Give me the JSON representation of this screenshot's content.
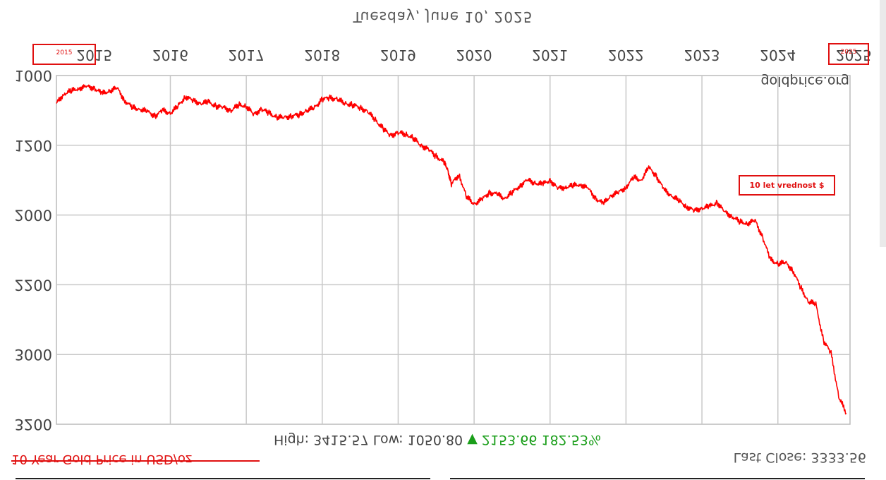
{
  "chart_data": {
    "type": "line",
    "orientation": "mirrored-vertically",
    "title": "Tuesday, June 10, 2025",
    "source": "goldprice.org",
    "caption": "10 Year Gold Price in USD/oz",
    "x_tick_labels": [
      "2015",
      "2016",
      "2017",
      "2018",
      "2019",
      "2020",
      "2021",
      "2022",
      "2023",
      "2024",
      "2025"
    ],
    "y_tick_labels": [
      "1000",
      "1500",
      "2000",
      "2500",
      "3000",
      "3500"
    ],
    "y_axis_printed_labels": [
      "1000",
      "1200",
      "2000",
      "2200",
      "3000",
      "3200"
    ],
    "ylim": [
      1000,
      3500
    ],
    "xlim": [
      2015.0,
      2025.45
    ],
    "grid": true,
    "line_color": "#ff0000",
    "series": [
      {
        "x": [
          2015.0,
          2015.1,
          2015.2,
          2015.3,
          2015.4,
          2015.5,
          2015.6,
          2015.7,
          2015.8,
          2015.9,
          2016.0,
          2016.1,
          2016.2,
          2016.3,
          2016.4,
          2016.5,
          2016.6,
          2016.7,
          2016.8,
          2016.9,
          2017.0,
          2017.1,
          2017.2,
          2017.3,
          2017.4,
          2017.5,
          2017.6,
          2017.7,
          2017.8,
          2017.9,
          2018.0,
          2018.1,
          2018.2,
          2018.3,
          2018.4,
          2018.5,
          2018.6,
          2018.7,
          2018.8,
          2018.9,
          2019.0,
          2019.1,
          2019.2,
          2019.3,
          2019.4,
          2019.5,
          2019.6,
          2019.7,
          2019.8,
          2019.9,
          2020.0,
          2020.1,
          2020.15,
          2020.2,
          2020.3,
          2020.4,
          2020.5,
          2020.6,
          2020.7,
          2020.8,
          2020.9,
          2021.0,
          2021.1,
          2021.2,
          2021.3,
          2021.4,
          2021.5,
          2021.6,
          2021.7,
          2021.8,
          2021.9,
          2022.0,
          2022.1,
          2022.2,
          2022.3,
          2022.4,
          2022.5,
          2022.6,
          2022.7,
          2022.8,
          2022.9,
          2023.0,
          2023.1,
          2023.2,
          2023.3,
          2023.4,
          2023.5,
          2023.6,
          2023.7,
          2023.8,
          2023.9,
          2024.0,
          2024.1,
          2024.2,
          2024.3,
          2024.4,
          2024.5,
          2024.6,
          2024.7,
          2024.8,
          2024.9,
          2025.0,
          2025.1,
          2025.2,
          2025.3,
          2025.4
        ],
        "y": [
          1200,
          1130,
          1110,
          1090,
          1080,
          1090,
          1130,
          1110,
          1090,
          1180,
          1230,
          1240,
          1260,
          1290,
          1250,
          1270,
          1220,
          1150,
          1180,
          1200,
          1190,
          1220,
          1230,
          1250,
          1210,
          1220,
          1280,
          1240,
          1270,
          1300,
          1300,
          1290,
          1280,
          1250,
          1230,
          1170,
          1160,
          1170,
          1200,
          1210,
          1230,
          1260,
          1320,
          1380,
          1430,
          1410,
          1420,
          1450,
          1500,
          1530,
          1580,
          1620,
          1670,
          1780,
          1710,
          1870,
          1920,
          1890,
          1840,
          1850,
          1880,
          1840,
          1790,
          1750,
          1770,
          1780,
          1750,
          1810,
          1800,
          1790,
          1780,
          1810,
          1880,
          1920,
          1860,
          1840,
          1800,
          1730,
          1750,
          1660,
          1720,
          1820,
          1860,
          1900,
          1940,
          1970,
          1950,
          1940,
          1910,
          1980,
          2010,
          2050,
          2060,
          2040,
          2160,
          2320,
          2350,
          2340,
          2400,
          2520,
          2620,
          2640,
          2900,
          2990,
          3300,
          3420
        ]
      }
    ],
    "stats": {
      "high_label": "High:",
      "high": "3415.57",
      "low_label": "Low:",
      "low": "1050.80",
      "change_arrow": "▼",
      "change": "2153.66",
      "change_pct": "182.53%"
    },
    "last_close_label": "Last Close:",
    "last_close": "3333.56",
    "annotation": "10 let vrednost $",
    "highlight_box_labels": [
      "2015",
      "2025"
    ]
  }
}
